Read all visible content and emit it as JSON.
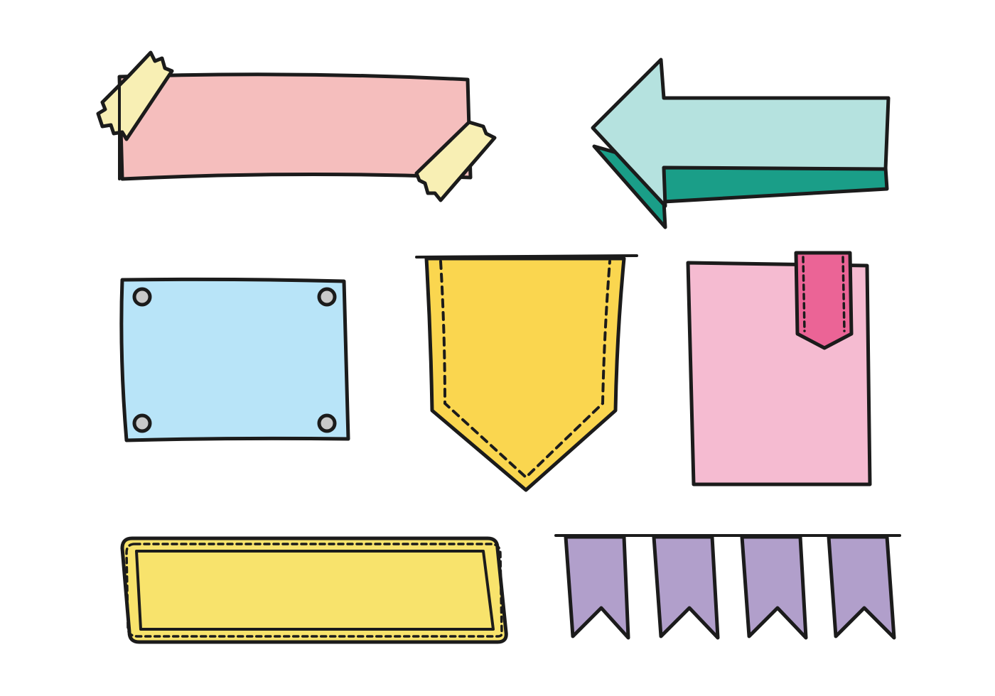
{
  "colors": {
    "background": "#ffffff",
    "outline": "#1b1b1b",
    "tape_banner": "#f5bebd",
    "tape": "#f8efb4",
    "arrow": "#b5e2df",
    "arrow_shadow": "#1a9e88",
    "riveted_plate": "#b8e4f8",
    "rivet": "#c9c9c9",
    "pennant": "#fad64f",
    "bookmark_card": "#f5bbd1",
    "bookmark_tab": "#eb6496",
    "stitched_label_border": "#f8e36c",
    "stitched_label_fill": "#e2eb9b",
    "bunting": "#b19fcb"
  },
  "elements": [
    "tape-banner",
    "left-arrow",
    "riveted-plate",
    "stitched-pennant",
    "bookmark-card",
    "stitched-label",
    "bunting-flags"
  ]
}
